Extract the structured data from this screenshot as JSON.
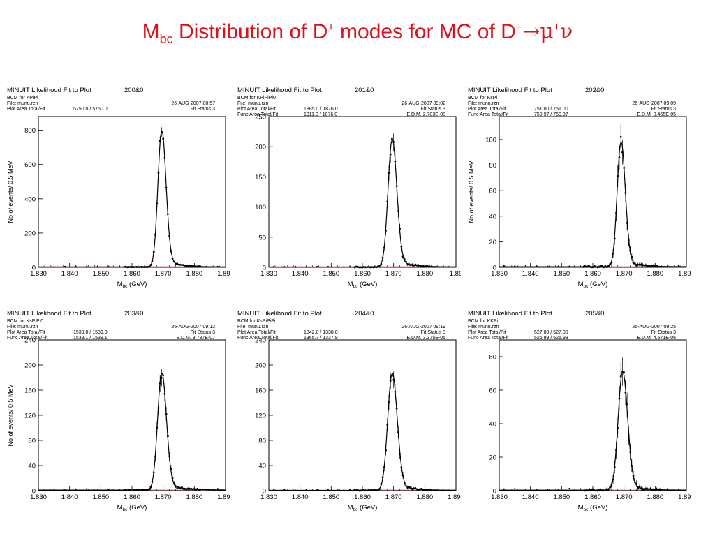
{
  "title": {
    "pre": "M",
    "sub": "bc",
    "mid": " Distribution of D",
    "sup1": "+",
    "rest": " modes  for MC of  D",
    "sup2": "+",
    "arrow": "→μ",
    "sup3": "+",
    "nu": "ν"
  },
  "panels": [
    {
      "fit_title": "MINUIT Likelihood Fit to Plot",
      "plot_id": "200&0",
      "mode": "BCM for KPiPi",
      "file": "File: munu.rzn",
      "row1_label": "Plot Area Total/Fit",
      "row1_value": "5750.0 / 5750.0",
      "row2_label": "",
      "row2_value": "",
      "date": "26-AUG-2007 08:57",
      "fit_status": "Fit Status  3",
      "edm": ""
    },
    {
      "fit_title": "MINUIT Likelihood Fit to Plot",
      "plot_id": "201&0",
      "mode": "BCM for KPiPiPi0",
      "file": "File: munu.rzn",
      "row1_label": "Plot Area Total/Fit",
      "row1_value": "1885.0 / 1876.0",
      "row2_label": "Func Area Total/Fit",
      "row2_value": "1911.0 / 1876.0",
      "date": "26-AUG-2007 09:02",
      "fit_status": "Fit Status  3",
      "edm": "E.D.M. 2.703E-08"
    },
    {
      "fit_title": "MINUIT Likelihood Fit to Plot",
      "plot_id": "202&0",
      "mode": "BCM for KsPi",
      "file": "File: munu.rzn",
      "row1_label": "Plot Area Total/Fit",
      "row1_value": "751.00 / 751.00",
      "row2_label": "Func Area Total/Fit",
      "row2_value": "750.97 / 750.97",
      "date": "26-AUG-2007 09:09",
      "fit_status": "Fit Status  3",
      "edm": "E.D.M. 8.465E-05"
    },
    {
      "fit_title": "MINUIT Likelihood Fit to Plot",
      "plot_id": "203&0",
      "mode": "BCM for KsPiPi0",
      "file": "File: munu.rzn",
      "row1_label": "Plot Area Total/Fit",
      "row1_value": "1539.0 / 1539.0",
      "row2_label": "Func Area Total/Fit",
      "row2_value": "1539.1 / 1539.1",
      "date": "26-AUG-2007 09:12",
      "fit_status": "Fit Status  3",
      "edm": "E.D.M. 3.787E-07"
    },
    {
      "fit_title": "MINUIT Likelihood Fit to Plot",
      "plot_id": "204&0",
      "mode": "BCM for KsPiPiPi",
      "file": "File: munu.rzn",
      "row1_label": "Plot Area Total/Fit",
      "row1_value": "1342.0 / 1338.0",
      "row2_label": "Func Area Total/Fit",
      "row2_value": "1365.7 / 1337.9",
      "date": "26-AUG-2007 09:19",
      "fit_status": "Fit Status  3",
      "edm": "E.D.M. 3.375E-05"
    },
    {
      "fit_title": "MINUIT Likelihood Fit to Plot",
      "plot_id": "205&0",
      "mode": "BCM for KKPi",
      "file": "File: munu.rzn",
      "row1_label": "Plot Area Total/Fit",
      "row1_value": "527.00 / 527.00",
      "row2_label": "Func Area Total/Fit",
      "row2_value": "526.99 / 526.99",
      "date": "26-AUG-2007 09:25",
      "fit_status": "Fit Status  3",
      "edm": "E.D.M. 4.571E-06"
    }
  ],
  "chart_data": [
    {
      "type": "line",
      "panel": 0,
      "xlabel": "Mbc (GeV)",
      "ylabel": "No of events/ 0.5 MeV",
      "xlim": [
        1.83,
        1.89
      ],
      "ylim": [
        0,
        880
      ],
      "xticks": [
        "1.830",
        "1.840",
        "1.850",
        "1.860",
        "1.870",
        "1.880",
        "1.890"
      ],
      "yticks": [
        0,
        200,
        400,
        600,
        800
      ],
      "peak": 1.8695,
      "amp": 790,
      "sigma": 0.0012,
      "tail": 0.0045,
      "bkg": 2,
      "line_color": "#000000"
    },
    {
      "type": "line",
      "panel": 1,
      "xlabel": "Mbc (GeV)",
      "ylabel": "",
      "xlim": [
        1.83,
        1.89
      ],
      "ylim": [
        0,
        250
      ],
      "xticks": [
        "1.830",
        "1.840",
        "1.850",
        "1.860",
        "1.870",
        "1.880",
        "1.89"
      ],
      "yticks": [
        0,
        50,
        100,
        150,
        200,
        250
      ],
      "peak": 1.8695,
      "amp": 210,
      "sigma": 0.0013,
      "tail": 0.005,
      "bkg": 0.5,
      "line_color": "#000000"
    },
    {
      "type": "line",
      "panel": 2,
      "xlabel": "Mbc (GeV)",
      "ylabel": "No of events/ 0.5 MeV",
      "xlim": [
        1.83,
        1.89
      ],
      "ylim": [
        0,
        118
      ],
      "xticks": [
        "1.830",
        "1.840",
        "1.850",
        "1.860",
        "1.870",
        "1.880",
        "1.890"
      ],
      "yticks": [
        0,
        20,
        40,
        60,
        80,
        100
      ],
      "peak": 1.869,
      "amp": 97,
      "sigma": 0.0012,
      "tail": 0.004,
      "bkg": 0.5,
      "line_color": "#000000"
    },
    {
      "type": "line",
      "panel": 3,
      "xlabel": "Mbc (GeV)",
      "ylabel": "No of events/ 0.5 MeV",
      "xlim": [
        1.83,
        1.89
      ],
      "ylim": [
        0,
        240
      ],
      "xticks": [
        "1.830",
        "1.840",
        "1.850",
        "1.860",
        "1.870",
        "1.880",
        "1.890"
      ],
      "yticks": [
        0,
        40,
        80,
        120,
        160,
        200,
        240
      ],
      "peak": 1.8695,
      "amp": 185,
      "sigma": 0.0013,
      "tail": 0.005,
      "bkg": 1,
      "line_color": "#000000"
    },
    {
      "type": "line",
      "panel": 4,
      "xlabel": "Mbc (GeV)",
      "ylabel": "",
      "xlim": [
        1.83,
        1.89
      ],
      "ylim": [
        0,
        240
      ],
      "xticks": [
        "1.830",
        "1.840",
        "1.850",
        "1.860",
        "1.870",
        "1.880",
        "1.890"
      ],
      "yticks": [
        0,
        40,
        80,
        120,
        160,
        200,
        240
      ],
      "peak": 1.8695,
      "amp": 185,
      "sigma": 0.0014,
      "tail": 0.005,
      "bkg": 0.5,
      "line_color": "#000000"
    },
    {
      "type": "line",
      "panel": 5,
      "xlabel": "Mbc (GeV)",
      "ylabel": "",
      "xlim": [
        1.83,
        1.89
      ],
      "ylim": [
        0,
        90
      ],
      "xticks": [
        "1.830",
        "1.840",
        "1.850",
        "1.860",
        "1.870",
        "1.880",
        "1.890"
      ],
      "yticks": [
        0,
        20,
        40,
        60,
        80
      ],
      "peak": 1.8695,
      "amp": 70,
      "sigma": 0.0014,
      "tail": 0.0045,
      "bkg": 0.3,
      "line_color": "#000000"
    }
  ]
}
